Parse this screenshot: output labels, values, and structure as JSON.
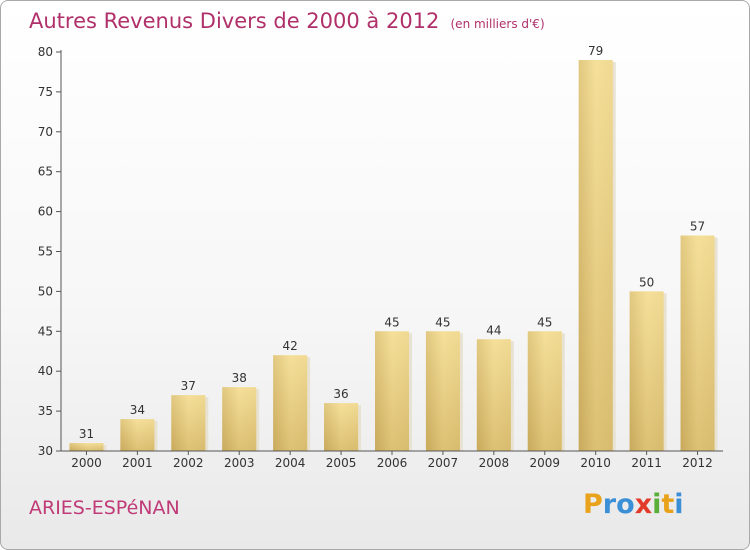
{
  "chart_data": {
    "type": "bar",
    "title": "Autres Revenus Divers de 2000 à 2012",
    "subtitle": "(en milliers d'€)",
    "categories": [
      "2000",
      "2001",
      "2002",
      "2003",
      "2004",
      "2005",
      "2006",
      "2007",
      "2008",
      "2009",
      "2010",
      "2011",
      "2012"
    ],
    "values": [
      31,
      34,
      37,
      38,
      42,
      36,
      45,
      45,
      44,
      45,
      79,
      50,
      57
    ],
    "ylim": [
      30,
      80
    ],
    "yticks": [
      30,
      35,
      40,
      45,
      50,
      55,
      60,
      65,
      70,
      75,
      80
    ],
    "grid": false,
    "data_labels": true
  },
  "place": "ARIES-ESPéNAN",
  "logo": {
    "letters": [
      "P",
      "r",
      "o",
      "x",
      "i",
      "t",
      "i"
    ],
    "colors": [
      "#e8a21b",
      "#3b8fd6",
      "#3b8fd6",
      "#e23b2a",
      "#5aae3a",
      "#e8a21b",
      "#3b8fd6"
    ]
  },
  "colors": {
    "title": "#b0306a",
    "bar_light": "#f3dc92",
    "bar_dark": "#c9a95a",
    "axis": "#444444"
  }
}
